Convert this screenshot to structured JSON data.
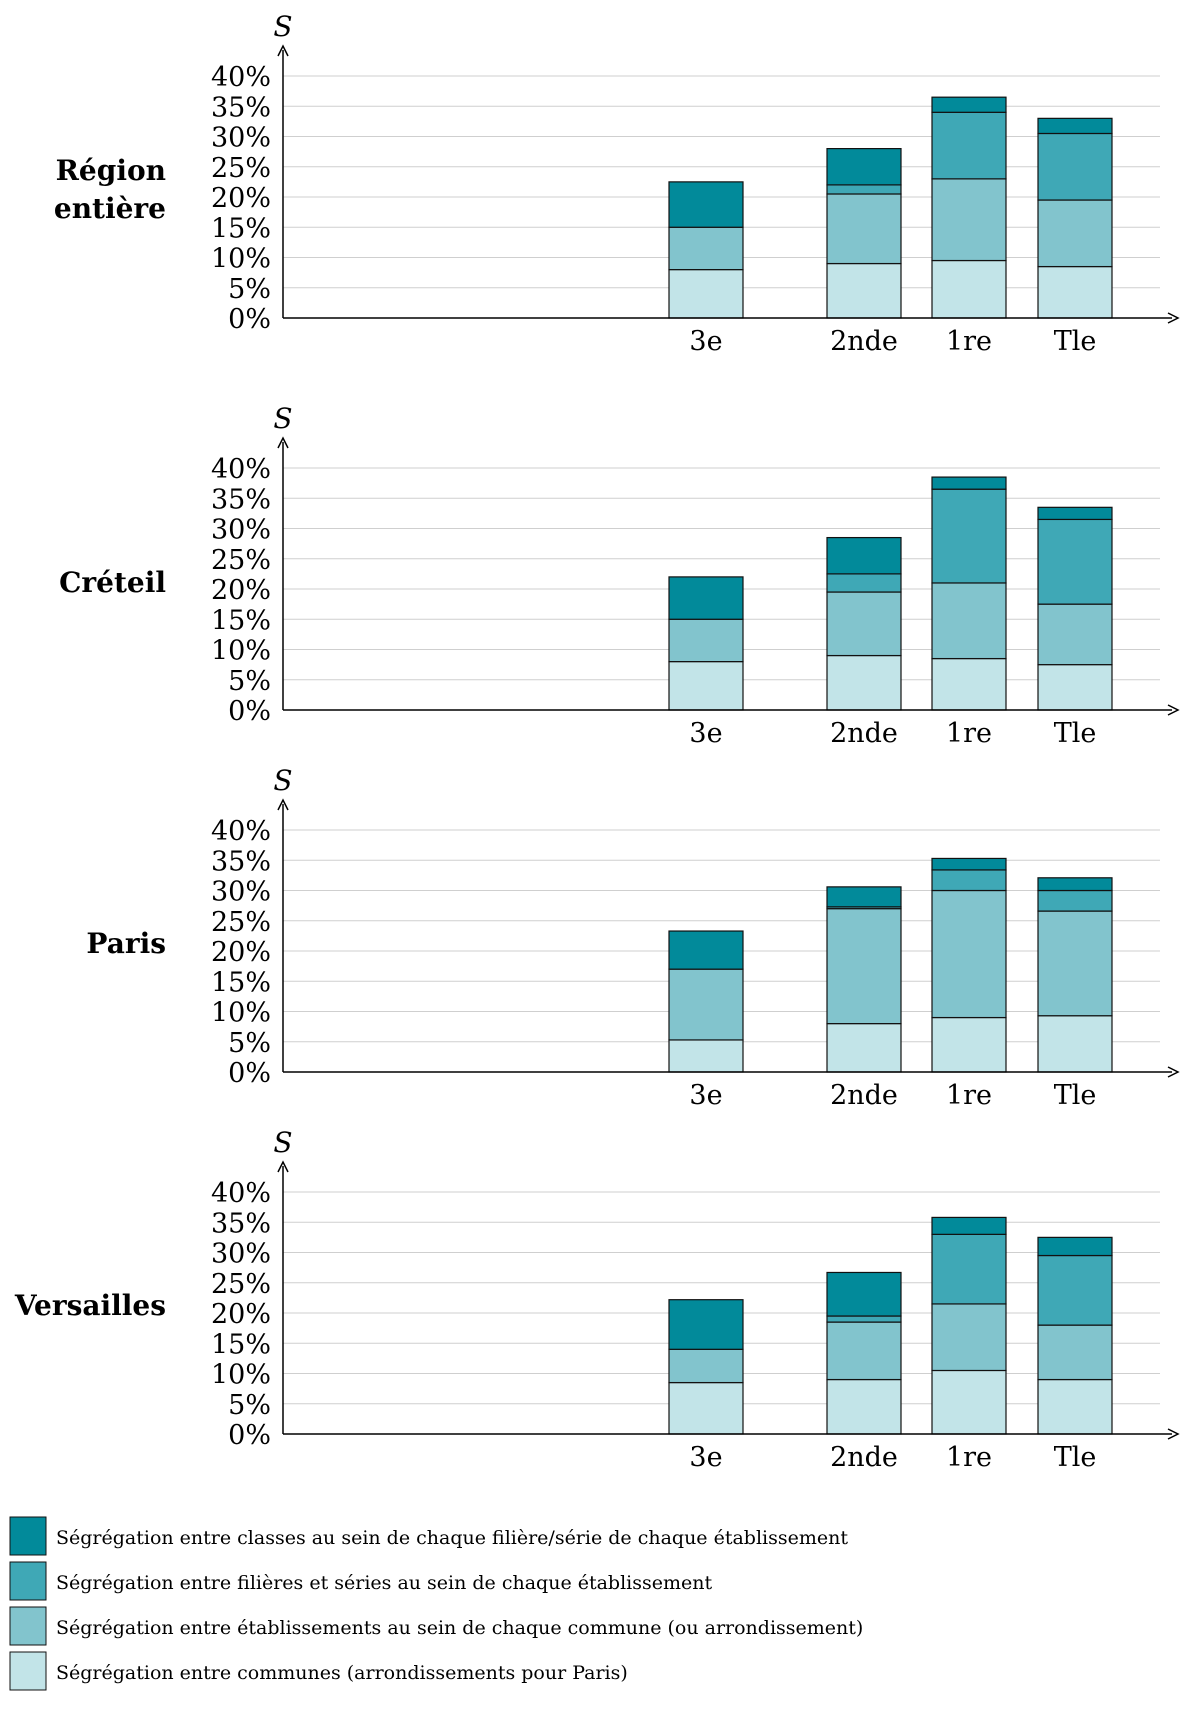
{
  "colors": [
    "#c2e4e8",
    "#82c4cd",
    "#3fa8b6",
    "#028a9a"
  ],
  "legend": [
    "Ségrégation entre classes au sein de chaque filière/série de chaque établissement",
    "Ségrégation entre filières et séries au sein de chaque établissement",
    "Ségrégation entre établissements au sein de chaque commune (ou arrondissement)",
    "Ségrégation entre communes (arrondissements pour Paris)"
  ],
  "chart_data": [
    {
      "type": "bar",
      "stacked": true,
      "panel_label": [
        "Région",
        "entière"
      ],
      "ylabel": "S",
      "ylim": [
        0,
        40
      ],
      "yticks": [
        "0%",
        "5%",
        "10%",
        "15%",
        "20%",
        "25%",
        "30%",
        "35%",
        "40%"
      ],
      "categories": [
        "3e",
        "2nde",
        "1re",
        "Tle"
      ],
      "series": [
        {
          "name": "Ségrégation entre communes (arrondissements pour Paris)",
          "values": [
            8,
            9,
            9.5,
            8.5
          ]
        },
        {
          "name": "Ségrégation entre établissements au sein de chaque commune (ou arrondissement)",
          "values": [
            7,
            11.5,
            13.5,
            11
          ]
        },
        {
          "name": "Ségrégation entre filières et séries au sein de chaque établissement",
          "values": [
            0,
            1.5,
            11,
            11
          ]
        },
        {
          "name": "Ségrégation entre classes au sein de chaque filière/série de chaque établissement",
          "values": [
            7.5,
            6,
            2.5,
            2.5
          ]
        }
      ]
    },
    {
      "type": "bar",
      "stacked": true,
      "panel_label": [
        "Créteil"
      ],
      "ylabel": "S",
      "ylim": [
        0,
        40
      ],
      "yticks": [
        "0%",
        "5%",
        "10%",
        "15%",
        "20%",
        "25%",
        "30%",
        "35%",
        "40%"
      ],
      "categories": [
        "3e",
        "2nde",
        "1re",
        "Tle"
      ],
      "series": [
        {
          "name": "Ségrégation entre communes (arrondissements pour Paris)",
          "values": [
            8,
            9,
            8.5,
            7.5
          ]
        },
        {
          "name": "Ségrégation entre établissements au sein de chaque commune (ou arrondissement)",
          "values": [
            7,
            10.5,
            12.5,
            10
          ]
        },
        {
          "name": "Ségrégation entre filières et séries au sein de chaque établissement",
          "values": [
            0,
            3,
            15.5,
            14
          ]
        },
        {
          "name": "Ségrégation entre classes au sein de chaque filière/série de chaque établissement",
          "values": [
            7,
            6,
            2,
            2
          ]
        }
      ]
    },
    {
      "type": "bar",
      "stacked": true,
      "panel_label": [
        "Paris"
      ],
      "ylabel": "S",
      "ylim": [
        0,
        40
      ],
      "yticks": [
        "0%",
        "5%",
        "10%",
        "15%",
        "20%",
        "25%",
        "30%",
        "35%",
        "40%"
      ],
      "categories": [
        "3e",
        "2nde",
        "1re",
        "Tle"
      ],
      "series": [
        {
          "name": "Ségrégation entre communes (arrondissements pour Paris)",
          "values": [
            5.3,
            8,
            9,
            9.3
          ]
        },
        {
          "name": "Ségrégation entre établissements au sein de chaque commune (ou arrondissement)",
          "values": [
            11.7,
            19,
            21,
            17.3
          ]
        },
        {
          "name": "Ségrégation entre filières et séries au sein de chaque établissement",
          "values": [
            0,
            0.3,
            3.4,
            3.4
          ]
        },
        {
          "name": "Ségrégation entre classes au sein de chaque filière/série de chaque établissement",
          "values": [
            6.3,
            3.3,
            1.9,
            2.1
          ]
        }
      ]
    },
    {
      "type": "bar",
      "stacked": true,
      "panel_label": [
        "Versailles"
      ],
      "ylabel": "S",
      "ylim": [
        0,
        40
      ],
      "yticks": [
        "0%",
        "5%",
        "10%",
        "15%",
        "20%",
        "25%",
        "30%",
        "35%",
        "40%"
      ],
      "categories": [
        "3e",
        "2nde",
        "1re",
        "Tle"
      ],
      "series": [
        {
          "name": "Ségrégation entre communes (arrondissements pour Paris)",
          "values": [
            8.5,
            9,
            10.5,
            9
          ]
        },
        {
          "name": "Ségrégation entre établissements au sein de chaque commune (ou arrondissement)",
          "values": [
            5.5,
            9.5,
            11,
            9
          ]
        },
        {
          "name": "Ségrégation entre filières et séries au sein de chaque établissement",
          "values": [
            0,
            1,
            11.5,
            11.5
          ]
        },
        {
          "name": "Ségrégation entre classes au sein de chaque filière/série de chaque établissement",
          "values": [
            8.2,
            7.2,
            2.8,
            3
          ]
        }
      ]
    }
  ]
}
